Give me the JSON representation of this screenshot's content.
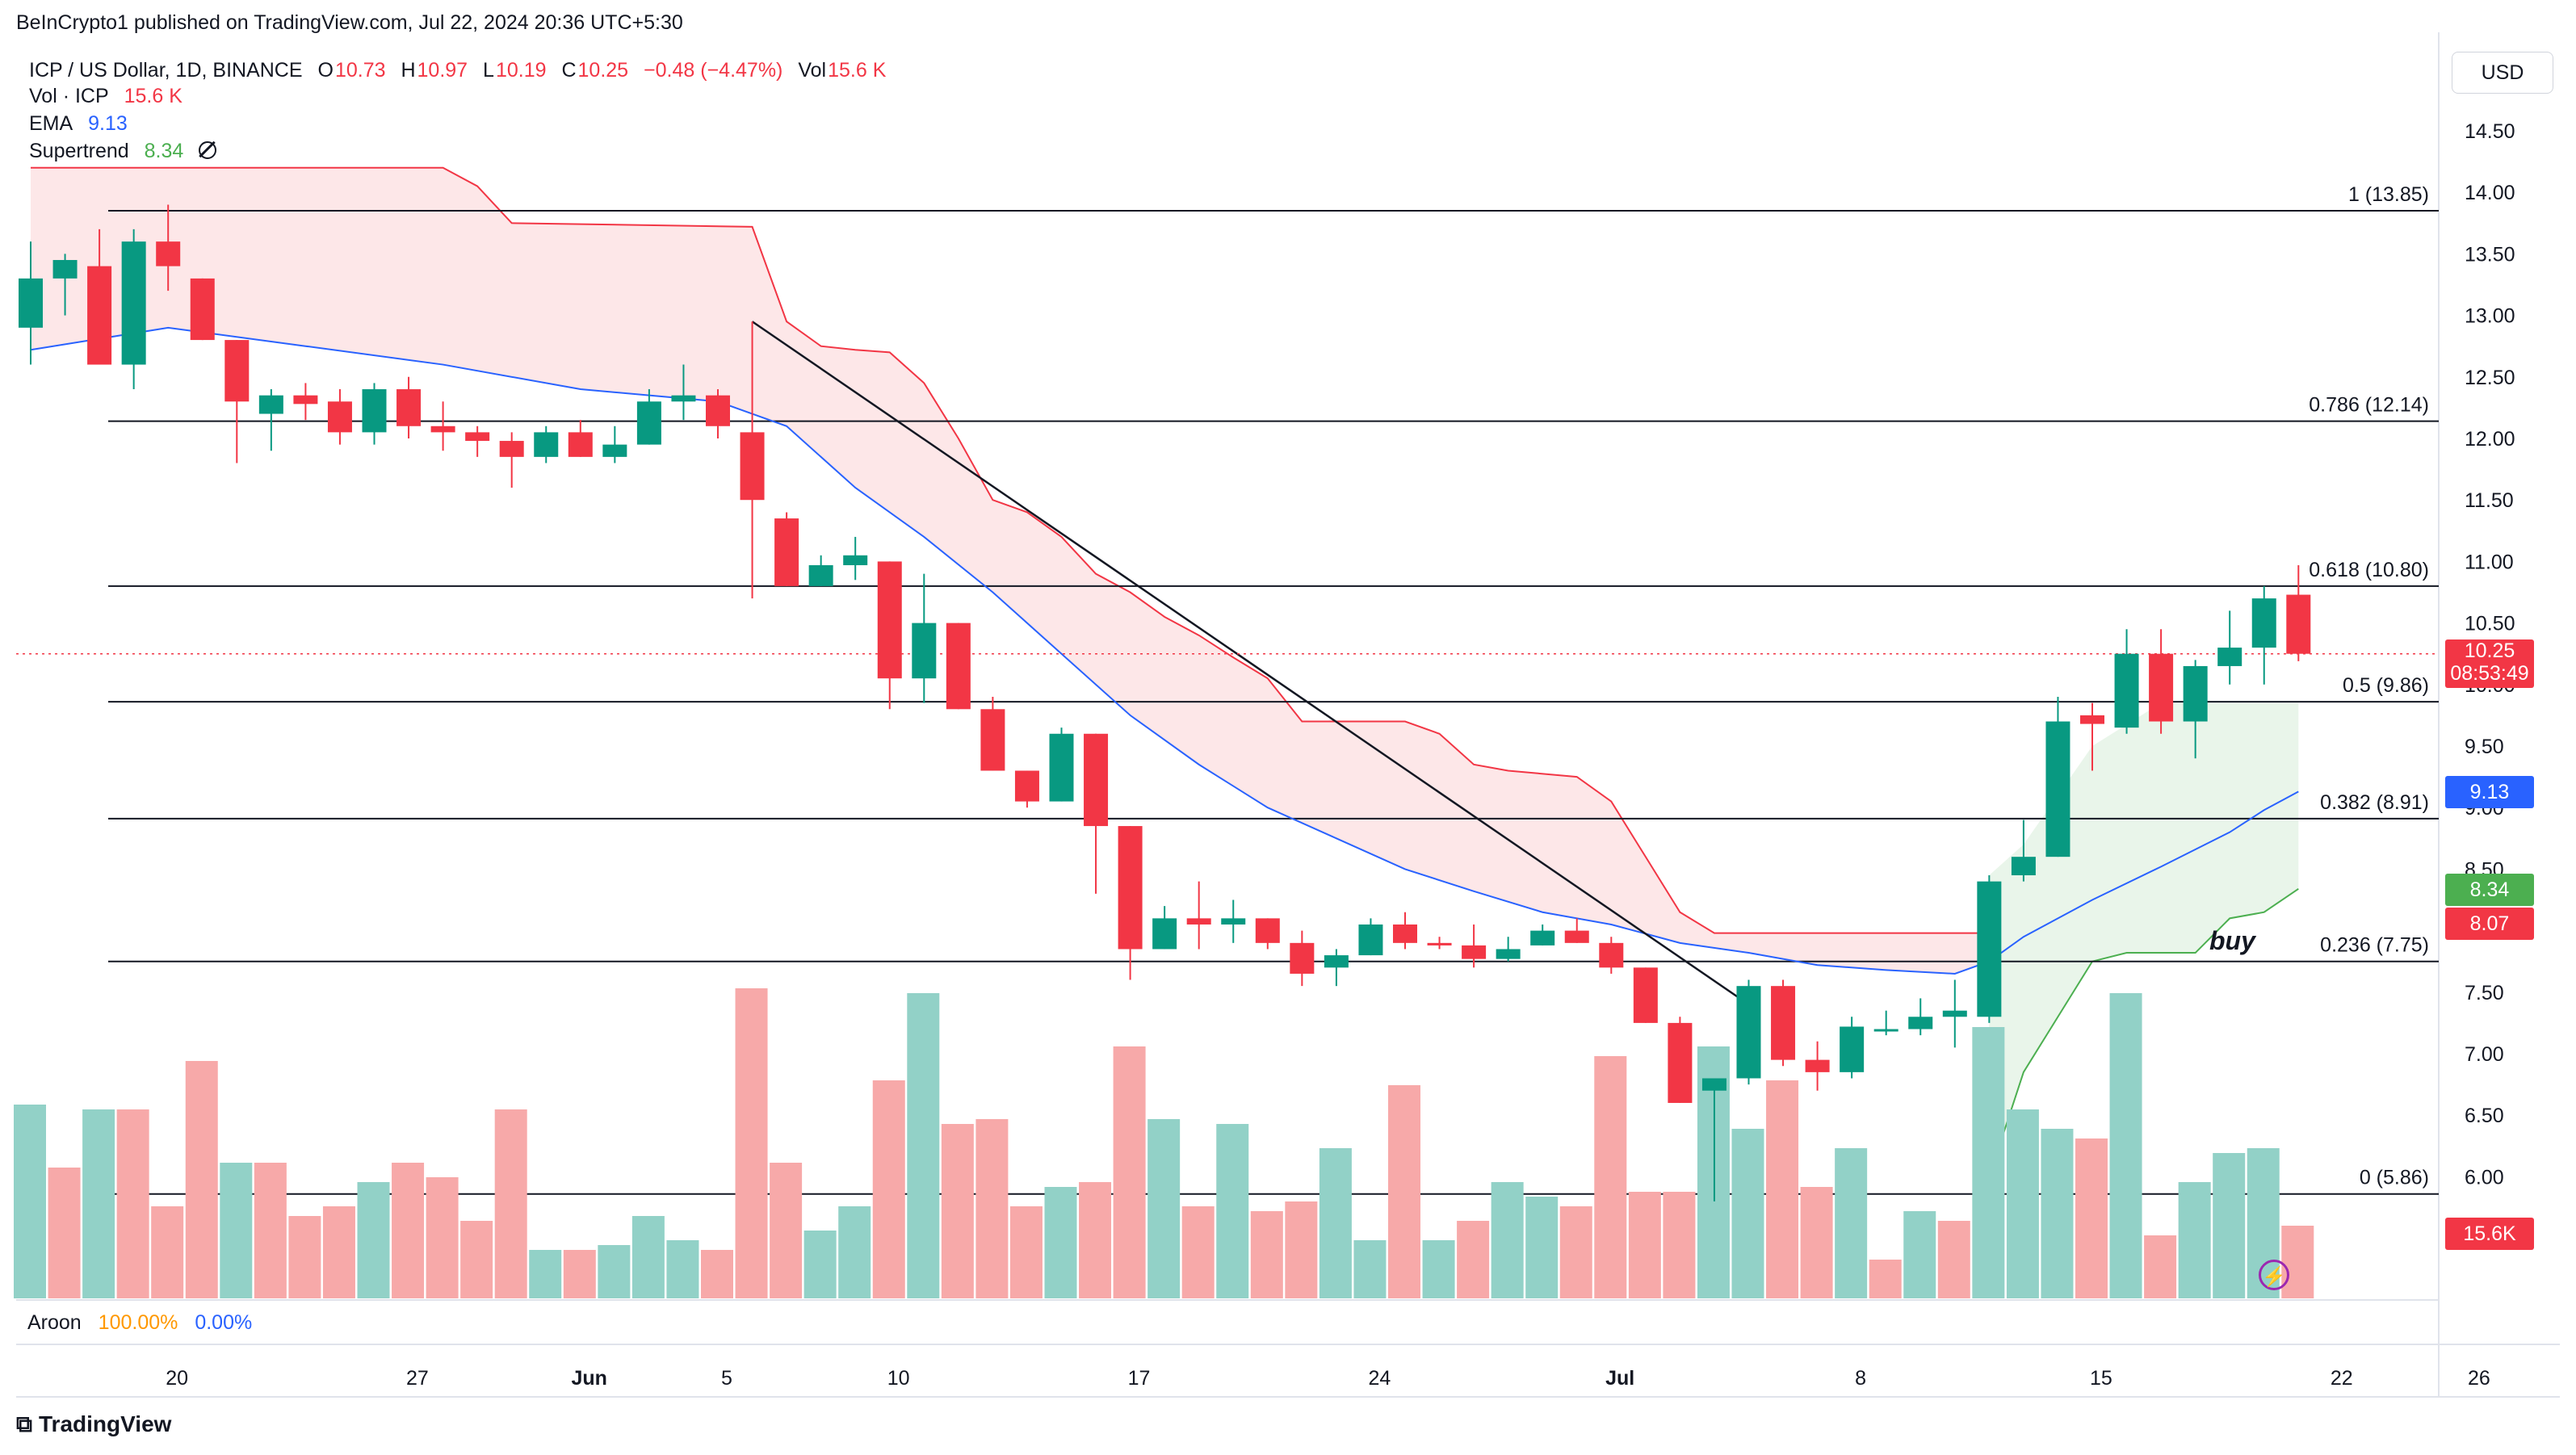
{
  "publisher_line": "BeInCrypto1 published on TradingView.com, Jul 22, 2024 20:36 UTC+5:30",
  "header": {
    "symbol": "ICP / US Dollar, 1D, BINANCE",
    "o_label": "O",
    "o": "10.73",
    "h_label": "H",
    "h": "10.97",
    "l_label": "L",
    "l": "10.19",
    "c_label": "C",
    "c": "10.25",
    "change": "−0.48 (−4.47%)",
    "vol_label": "Vol",
    "vol": "15.6 K"
  },
  "indicators": {
    "vol_label": "Vol · ICP",
    "vol_value": "15.6 K",
    "ema_label": "EMA",
    "ema_value": "9.13",
    "supertrend_label": "Supertrend",
    "supertrend_value": "8.34"
  },
  "currency_button": "USD",
  "logo_text": "TradingView",
  "aroon": {
    "label": "Aroon",
    "up": "100.00%",
    "down": "0.00%"
  },
  "colors": {
    "up": "#089981",
    "down": "#f23645",
    "ema": "#2962ff",
    "supertrend_down": "#f23645",
    "supertrend_up": "#4caf50",
    "vol_up": "#92d1c7",
    "vol_down": "#f7a9a9"
  },
  "price_tags": {
    "last": "10.25",
    "countdown": "08:53:49",
    "ema": "9.13",
    "supertrend": "8.34",
    "low_line": "8.07",
    "volume": "15.6K"
  },
  "annotation": "buy",
  "chart_data": {
    "type": "candlestick",
    "y_range": [
      5.0,
      14.8
    ],
    "y_ticks": [
      "14.50",
      "14.00",
      "13.50",
      "13.00",
      "12.50",
      "12.00",
      "11.50",
      "11.00",
      "10.50",
      "10.00",
      "9.50",
      "9.00",
      "8.50",
      "8.00",
      "7.50",
      "7.00",
      "6.50",
      "6.00"
    ],
    "x_ticks": [
      {
        "label": "20",
        "bar": 2
      },
      {
        "label": "27",
        "bar": 9
      },
      {
        "label": "Jun",
        "bar": 14
      },
      {
        "label": "5",
        "bar": 18
      },
      {
        "label": "10",
        "bar": 23
      },
      {
        "label": "17",
        "bar": 30
      },
      {
        "label": "24",
        "bar": 37
      },
      {
        "label": "Jul",
        "bar": 44
      },
      {
        "label": "8",
        "bar": 51
      },
      {
        "label": "15",
        "bar": 58
      },
      {
        "label": "22",
        "bar": 65
      },
      {
        "label": "26",
        "bar": 69
      }
    ],
    "fib_levels": [
      {
        "label": "1 (13.85)",
        "value": 13.85
      },
      {
        "label": "0.786 (12.14)",
        "value": 12.14
      },
      {
        "label": "0.618 (10.80)",
        "value": 10.8
      },
      {
        "label": "0.5 (9.86)",
        "value": 9.86
      },
      {
        "label": "0.382 (8.91)",
        "value": 8.91
      },
      {
        "label": "0.236 (7.75)",
        "value": 7.75
      },
      {
        "label": "0 (5.86)",
        "value": 5.86
      }
    ],
    "candles": [
      [
        12.9,
        13.6,
        12.6,
        13.3
      ],
      [
        13.3,
        13.5,
        13.0,
        13.45
      ],
      [
        13.4,
        13.7,
        12.6,
        12.6
      ],
      [
        12.6,
        13.7,
        12.4,
        13.6
      ],
      [
        13.6,
        13.9,
        13.2,
        13.4
      ],
      [
        13.3,
        13.3,
        12.8,
        12.8
      ],
      [
        12.8,
        12.8,
        11.8,
        12.3
      ],
      [
        12.2,
        12.4,
        11.9,
        12.35
      ],
      [
        12.35,
        12.45,
        12.15,
        12.28
      ],
      [
        12.3,
        12.4,
        11.95,
        12.05
      ],
      [
        12.05,
        12.45,
        11.95,
        12.4
      ],
      [
        12.4,
        12.5,
        12.0,
        12.1
      ],
      [
        12.1,
        12.3,
        11.9,
        12.05
      ],
      [
        12.05,
        12.1,
        11.85,
        11.98
      ],
      [
        11.98,
        12.05,
        11.6,
        11.85
      ],
      [
        11.85,
        12.1,
        11.8,
        12.05
      ],
      [
        12.05,
        12.15,
        11.85,
        11.85
      ],
      [
        11.85,
        12.1,
        11.8,
        11.95
      ],
      [
        11.95,
        12.4,
        11.95,
        12.3
      ],
      [
        12.3,
        12.6,
        12.15,
        12.35
      ],
      [
        12.35,
        12.4,
        12.0,
        12.1
      ],
      [
        12.05,
        12.95,
        10.7,
        11.5
      ],
      [
        11.35,
        11.4,
        10.8,
        10.8
      ],
      [
        10.8,
        11.05,
        10.8,
        10.97
      ],
      [
        10.97,
        11.2,
        10.85,
        11.05
      ],
      [
        11.0,
        11.0,
        9.8,
        10.05
      ],
      [
        10.05,
        10.9,
        9.85,
        10.5
      ],
      [
        10.5,
        10.5,
        9.8,
        9.8
      ],
      [
        9.8,
        9.9,
        9.3,
        9.3
      ],
      [
        9.3,
        9.3,
        9.0,
        9.05
      ],
      [
        9.05,
        9.65,
        9.05,
        9.6
      ],
      [
        9.6,
        9.6,
        8.3,
        8.85
      ],
      [
        8.85,
        8.85,
        7.6,
        7.85
      ],
      [
        7.85,
        8.2,
        7.85,
        8.1
      ],
      [
        8.1,
        8.4,
        7.85,
        8.05
      ],
      [
        8.05,
        8.25,
        7.9,
        8.1
      ],
      [
        8.1,
        8.1,
        7.85,
        7.9
      ],
      [
        7.9,
        8.0,
        7.55,
        7.65
      ],
      [
        7.7,
        7.85,
        7.55,
        7.8
      ],
      [
        7.8,
        8.1,
        7.8,
        8.05
      ],
      [
        8.05,
        8.15,
        7.85,
        7.9
      ],
      [
        7.9,
        7.95,
        7.85,
        7.88
      ],
      [
        7.88,
        8.05,
        7.7,
        7.77
      ],
      [
        7.77,
        7.95,
        7.75,
        7.85
      ],
      [
        7.88,
        8.05,
        7.88,
        8.0
      ],
      [
        8.0,
        8.1,
        7.9,
        7.9
      ],
      [
        7.9,
        7.95,
        7.65,
        7.7
      ],
      [
        7.7,
        7.7,
        7.25,
        7.25
      ],
      [
        7.25,
        7.3,
        6.6,
        6.6
      ],
      [
        6.7,
        6.8,
        5.8,
        6.8
      ],
      [
        6.8,
        7.6,
        6.75,
        7.55
      ],
      [
        7.55,
        7.6,
        6.9,
        6.95
      ],
      [
        6.95,
        7.1,
        6.7,
        6.85
      ],
      [
        6.85,
        7.3,
        6.8,
        7.22
      ],
      [
        7.2,
        7.35,
        7.15,
        7.2
      ],
      [
        7.2,
        7.45,
        7.15,
        7.3
      ],
      [
        7.3,
        7.6,
        7.05,
        7.35
      ],
      [
        7.3,
        8.45,
        7.25,
        8.4
      ],
      [
        8.45,
        8.9,
        8.4,
        8.6
      ],
      [
        8.6,
        9.9,
        8.6,
        9.7
      ],
      [
        9.75,
        9.85,
        9.3,
        9.68
      ],
      [
        9.65,
        10.45,
        9.6,
        10.25
      ],
      [
        10.25,
        10.45,
        9.6,
        9.7
      ],
      [
        9.7,
        10.2,
        9.4,
        10.15
      ],
      [
        10.15,
        10.6,
        10.0,
        10.3
      ],
      [
        10.3,
        10.8,
        10.0,
        10.7
      ],
      [
        10.73,
        10.97,
        10.19,
        10.25
      ]
    ],
    "volume": [
      [
        4.0,
        1
      ],
      [
        2.7,
        0
      ],
      [
        3.9,
        1
      ],
      [
        3.9,
        0
      ],
      [
        1.9,
        0
      ],
      [
        4.9,
        0
      ],
      [
        2.8,
        1
      ],
      [
        2.8,
        0
      ],
      [
        1.7,
        0
      ],
      [
        1.9,
        0
      ],
      [
        2.4,
        1
      ],
      [
        2.8,
        0
      ],
      [
        2.5,
        0
      ],
      [
        1.6,
        0
      ],
      [
        3.9,
        0
      ],
      [
        1.0,
        1
      ],
      [
        1.0,
        0
      ],
      [
        1.1,
        1
      ],
      [
        1.7,
        1
      ],
      [
        1.2,
        1
      ],
      [
        1.0,
        0
      ],
      [
        6.4,
        0
      ],
      [
        2.8,
        0
      ],
      [
        1.4,
        1
      ],
      [
        1.9,
        1
      ],
      [
        4.5,
        0
      ],
      [
        6.3,
        1
      ],
      [
        3.6,
        0
      ],
      [
        3.7,
        0
      ],
      [
        1.9,
        0
      ],
      [
        2.3,
        1
      ],
      [
        2.4,
        0
      ],
      [
        5.2,
        0
      ],
      [
        3.7,
        1
      ],
      [
        1.9,
        0
      ],
      [
        3.6,
        1
      ],
      [
        1.8,
        0
      ],
      [
        2.0,
        0
      ],
      [
        3.1,
        1
      ],
      [
        1.2,
        1
      ],
      [
        4.4,
        0
      ],
      [
        1.2,
        1
      ],
      [
        1.6,
        0
      ],
      [
        2.4,
        1
      ],
      [
        2.1,
        1
      ],
      [
        1.9,
        0
      ],
      [
        5.0,
        0
      ],
      [
        2.2,
        0
      ],
      [
        2.2,
        0
      ],
      [
        5.2,
        1
      ],
      [
        3.5,
        1
      ],
      [
        4.5,
        0
      ],
      [
        2.3,
        0
      ],
      [
        3.1,
        1
      ],
      [
        0.8,
        0
      ],
      [
        1.8,
        1
      ],
      [
        1.6,
        0
      ],
      [
        5.6,
        1
      ],
      [
        3.9,
        1
      ],
      [
        3.5,
        1
      ],
      [
        3.3,
        0
      ],
      [
        6.3,
        1
      ],
      [
        1.3,
        0
      ],
      [
        2.4,
        1
      ],
      [
        3.0,
        1
      ],
      [
        3.1,
        1
      ],
      [
        1.5,
        0
      ]
    ],
    "ema": [
      [
        0,
        12.72
      ],
      [
        4,
        12.9
      ],
      [
        8,
        12.75
      ],
      [
        12,
        12.6
      ],
      [
        16,
        12.4
      ],
      [
        20,
        12.3
      ],
      [
        22,
        12.1
      ],
      [
        24,
        11.6
      ],
      [
        26,
        11.2
      ],
      [
        28,
        10.75
      ],
      [
        30,
        10.25
      ],
      [
        32,
        9.75
      ],
      [
        34,
        9.35
      ],
      [
        36,
        9.0
      ],
      [
        38,
        8.75
      ],
      [
        40,
        8.5
      ],
      [
        42,
        8.32
      ],
      [
        44,
        8.15
      ],
      [
        46,
        8.05
      ],
      [
        48,
        7.9
      ],
      [
        50,
        7.82
      ],
      [
        52,
        7.72
      ],
      [
        54,
        7.68
      ],
      [
        56,
        7.65
      ],
      [
        57,
        7.75
      ],
      [
        58,
        7.95
      ],
      [
        60,
        8.25
      ],
      [
        62,
        8.52
      ],
      [
        64,
        8.8
      ],
      [
        65,
        8.98
      ],
      [
        66,
        9.13
      ]
    ],
    "supertrend": [
      [
        0,
        14.2
      ],
      [
        12,
        14.2
      ],
      [
        13,
        14.05
      ],
      [
        14,
        13.75
      ],
      [
        21,
        13.72
      ],
      [
        22,
        12.95
      ],
      [
        23,
        12.75
      ],
      [
        24,
        12.72
      ],
      [
        25,
        12.7
      ],
      [
        26,
        12.45
      ],
      [
        27,
        12.0
      ],
      [
        28,
        11.5
      ],
      [
        29,
        11.4
      ],
      [
        30,
        11.2
      ],
      [
        31,
        10.9
      ],
      [
        32,
        10.75
      ],
      [
        33,
        10.55
      ],
      [
        34,
        10.4
      ],
      [
        35,
        10.22
      ],
      [
        36,
        10.05
      ],
      [
        37,
        9.7
      ],
      [
        40,
        9.7
      ],
      [
        41,
        9.6
      ],
      [
        42,
        9.35
      ],
      [
        43,
        9.3
      ],
      [
        45,
        9.25
      ],
      [
        46,
        9.05
      ],
      [
        47,
        8.6
      ],
      [
        48,
        8.15
      ],
      [
        49,
        7.98
      ],
      [
        56,
        7.98
      ],
      [
        57,
        7.98
      ]
    ],
    "supertrend_up": [
      [
        57,
        6.0
      ],
      [
        58,
        6.85
      ],
      [
        59,
        7.3
      ],
      [
        60,
        7.75
      ],
      [
        61,
        7.82
      ],
      [
        62,
        7.82
      ],
      [
        63,
        7.82
      ],
      [
        64,
        8.1
      ],
      [
        65,
        8.15
      ],
      [
        66,
        8.34
      ]
    ],
    "trendline": [
      [
        21,
        12.95
      ],
      [
        50,
        7.4
      ]
    ],
    "last_price": 10.25
  }
}
